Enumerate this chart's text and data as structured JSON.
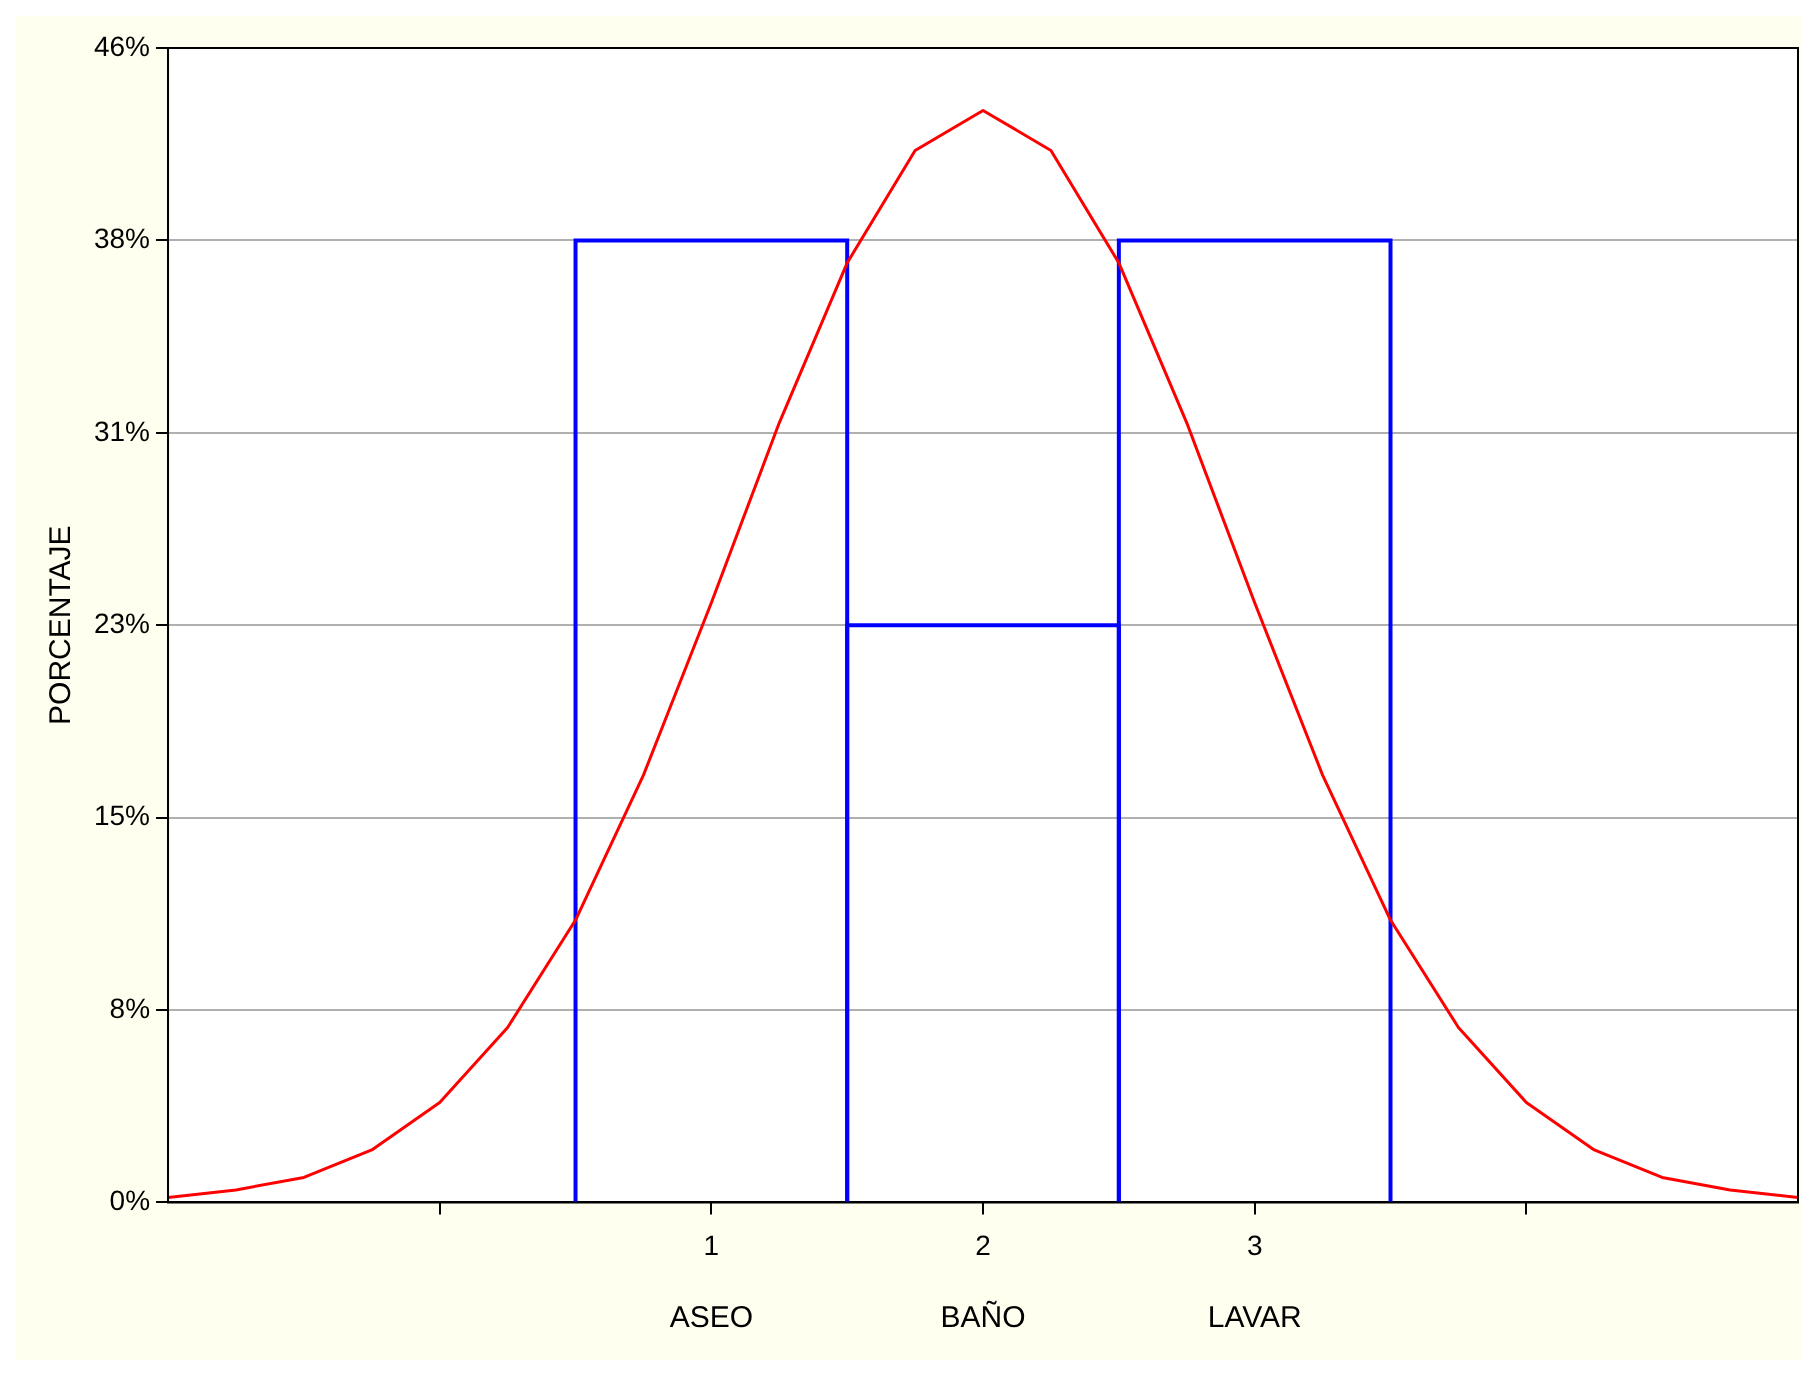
{
  "chart_data": {
    "type": "histogram",
    "ylabel": "PORCENTAJE",
    "bins": [
      0.5,
      1.5,
      2.5,
      3.5
    ],
    "values": [
      38.5,
      23.1,
      38.5
    ],
    "color": "#0000ff",
    "series": [
      {
        "type": "line",
        "color": "#ff0000",
        "x": [
          -1,
          -0.75,
          -0.5,
          -0.25,
          0,
          0.25,
          0.5,
          0.75,
          1,
          1.25,
          1.5,
          1.75,
          2,
          2.25,
          2.5,
          2.75,
          3,
          3.25,
          3.5,
          3.75,
          4,
          4.25,
          4.5,
          4.75,
          5
        ],
        "values": [
          0.2,
          0.5,
          1.0,
          2.1,
          4.0,
          7.0,
          11.3,
          17.1,
          24.0,
          31.2,
          37.6,
          42.1,
          43.7,
          42.1,
          37.6,
          31.2,
          24.0,
          17.1,
          11.3,
          7.0,
          4.0,
          2.1,
          1.0,
          0.5,
          0.2
        ]
      }
    ],
    "xlim": [
      -1,
      5
    ],
    "xticks": [
      {
        "value": 0,
        "label": null
      },
      1,
      2,
      3,
      {
        "value": 4,
        "label": null
      }
    ],
    "ylim": [
      0,
      46.2
    ],
    "yticks": [
      {
        "value": 0,
        "label": "0%"
      },
      {
        "value": 7.7,
        "label": "8%"
      },
      {
        "value": 15.4,
        "label": "15%"
      },
      {
        "value": 23.1,
        "label": "23%"
      },
      {
        "value": 30.8,
        "label": "31%"
      },
      {
        "value": 38.5,
        "label": "38%"
      },
      {
        "value": 46.2,
        "label": "46%"
      }
    ],
    "annotations": [
      "ASEO",
      "BAÑO",
      "LAVAR"
    ],
    "grid": "y",
    "legend": false,
    "marker": "none",
    "line_style": "solid"
  }
}
